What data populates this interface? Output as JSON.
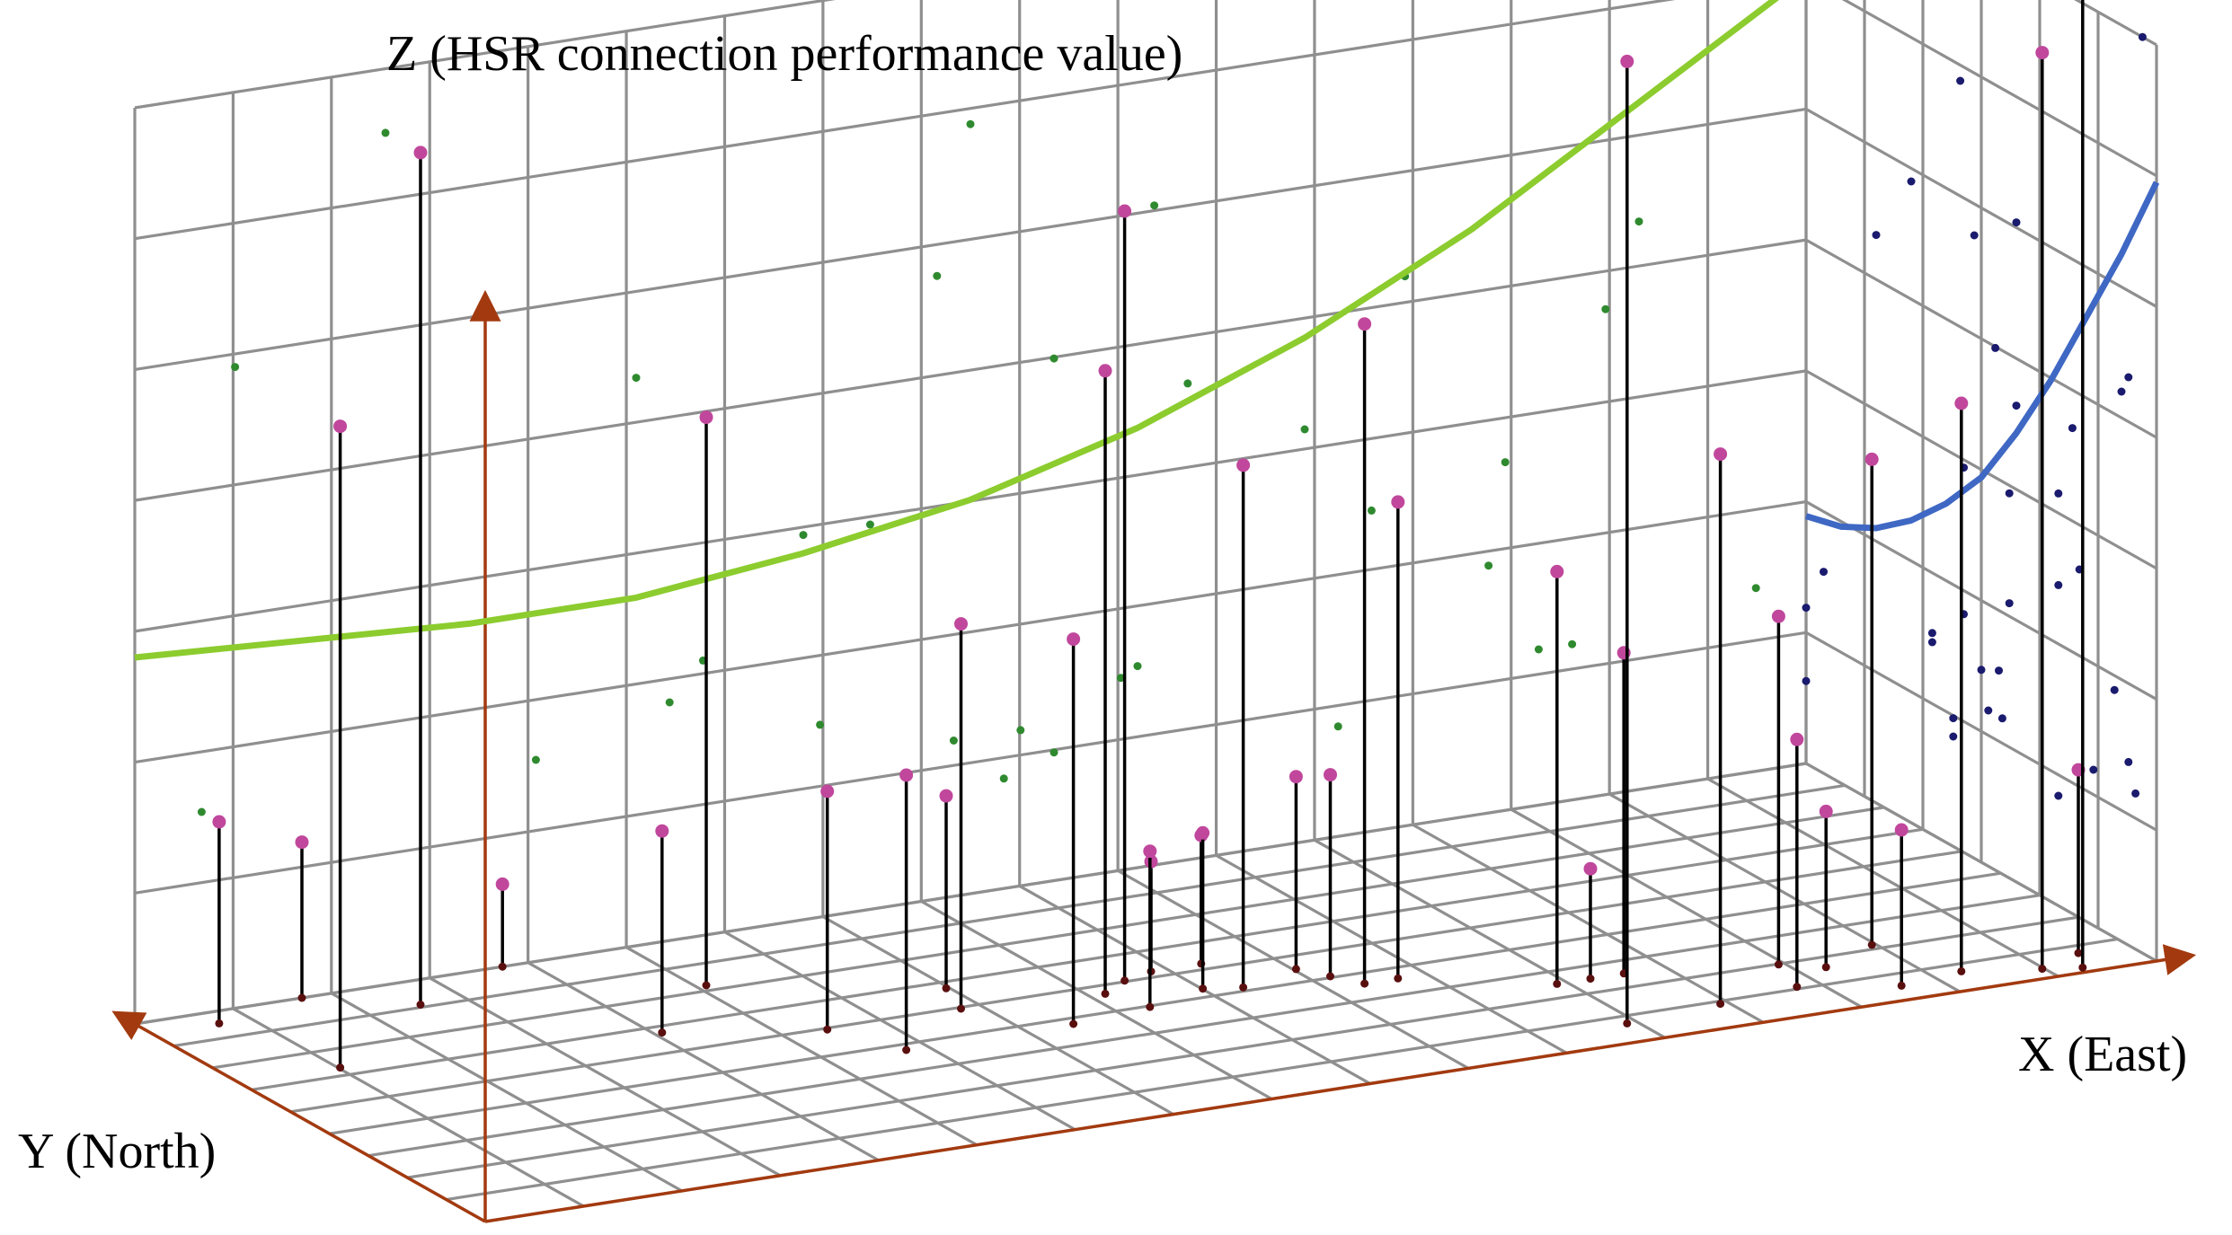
{
  "chart_data": {
    "type": "scatter",
    "projection": "3d-oblique",
    "title": "",
    "xlabel": "X (East)",
    "ylabel": "Y (North)",
    "zlabel": "Z (HSR connection performance value)",
    "xlim": [
      0,
      100
    ],
    "ylim": [
      0,
      100
    ],
    "zlim": [
      0,
      100
    ],
    "grid": true,
    "colors": {
      "grid": "#8f8f8f",
      "axis": "#a33a0f",
      "stem": "#000000",
      "point": "#c0479c",
      "base": "#5a0f0f",
      "xz_projection": "#2f8a2f",
      "yz_projection": "#1a1a6e",
      "xz_trend": "#8ccc2e",
      "yz_trend": "#3f68c4"
    },
    "points": [
      {
        "x": 6,
        "y": 70,
        "z": 70
      },
      {
        "x": 15,
        "y": 90,
        "z": 93
      },
      {
        "x": 4,
        "y": 95,
        "z": 22
      },
      {
        "x": 10,
        "y": 100,
        "z": 17
      },
      {
        "x": 30,
        "y": 80,
        "z": 62
      },
      {
        "x": 24,
        "y": 64,
        "z": 22
      },
      {
        "x": 34,
        "y": 42,
        "z": 30
      },
      {
        "x": 32,
        "y": 55,
        "z": 26
      },
      {
        "x": 22,
        "y": 100,
        "z": 9
      },
      {
        "x": 40,
        "y": 55,
        "z": 42
      },
      {
        "x": 44,
        "y": 42,
        "z": 42
      },
      {
        "x": 41,
        "y": 64,
        "z": 21
      },
      {
        "x": 50,
        "y": 56,
        "z": 84
      },
      {
        "x": 48,
        "y": 52,
        "z": 68
      },
      {
        "x": 49,
        "y": 44,
        "z": 17
      },
      {
        "x": 52,
        "y": 58,
        "z": 12
      },
      {
        "x": 53,
        "y": 48,
        "z": 17
      },
      {
        "x": 55,
        "y": 46,
        "z": 57
      },
      {
        "x": 55,
        "y": 58,
        "z": 14
      },
      {
        "x": 61,
        "y": 40,
        "z": 72
      },
      {
        "x": 59,
        "y": 50,
        "z": 21
      },
      {
        "x": 63,
        "y": 40,
        "z": 52
      },
      {
        "x": 60,
        "y": 45,
        "z": 22
      },
      {
        "x": 70,
        "y": 8,
        "z": 105
      },
      {
        "x": 70,
        "y": 28,
        "z": 45
      },
      {
        "x": 74,
        "y": 28,
        "z": 35
      },
      {
        "x": 72,
        "y": 28,
        "z": 12
      },
      {
        "x": 76,
        "y": 10,
        "z": 60
      },
      {
        "x": 82,
        "y": 22,
        "z": 38
      },
      {
        "x": 81,
        "y": 12,
        "z": 27
      },
      {
        "x": 84,
        "y": 18,
        "z": 17
      },
      {
        "x": 88,
        "y": 24,
        "z": 53
      },
      {
        "x": 86,
        "y": 6,
        "z": 17
      },
      {
        "x": 90,
        "y": 8,
        "z": 62
      },
      {
        "x": 94,
        "y": 4,
        "z": 100
      },
      {
        "x": 96,
        "y": 2,
        "z": 110
      },
      {
        "x": 97,
        "y": 8,
        "z": 20
      }
    ],
    "xz_trend": {
      "x": [
        0,
        10,
        20,
        30,
        40,
        50,
        60,
        70,
        80,
        90,
        100
      ],
      "z": [
        40,
        39,
        38,
        38,
        40,
        43,
        48,
        55,
        64,
        75,
        86
      ]
    },
    "yz_trend": {
      "y": [
        0,
        10,
        20,
        30,
        40,
        50,
        60,
        70,
        80,
        90,
        100
      ],
      "z": [
        85,
        75,
        66,
        57,
        49,
        42,
        37,
        33,
        30,
        28,
        27
      ]
    }
  }
}
